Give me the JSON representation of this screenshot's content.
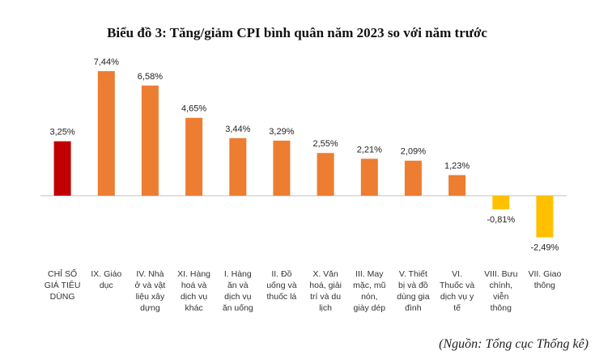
{
  "chart_data": {
    "type": "bar",
    "title": "Biểu đồ 3: Tăng/giảm CPI bình quân năm 2023 so với năm trước",
    "source": "(Nguồn: Tổng cục Thống kê)",
    "categories": [
      [
        "CHỈ SỐ",
        "GIÁ TIÊU",
        "DÙNG"
      ],
      [
        "IX. Giáo",
        "dục"
      ],
      [
        "IV. Nhà",
        "ở và vật",
        "liệu xây",
        "dựng"
      ],
      [
        "XI. Hàng",
        "hoá và",
        "dịch vụ",
        "khác"
      ],
      [
        "I. Hàng",
        "ăn và",
        "dịch vụ",
        "ăn uống"
      ],
      [
        "II. Đồ",
        "uống và",
        "thuốc lá"
      ],
      [
        "X. Văn",
        "hoá, giải",
        "trí và du",
        "lịch"
      ],
      [
        "III. May",
        "mặc, mũ",
        "nón,",
        "giày dép"
      ],
      [
        "V. Thiết",
        "bị và đồ",
        "dùng gia",
        "đình"
      ],
      [
        "VI.",
        "Thuốc và",
        "dịch vụ y",
        "tế"
      ],
      [
        "VIII. Bưu",
        "chính,",
        "viễn",
        "thông"
      ],
      [
        "VII. Giao",
        "thông"
      ]
    ],
    "values": [
      3.25,
      7.44,
      6.58,
      4.65,
      3.44,
      3.29,
      2.55,
      2.21,
      2.09,
      1.23,
      -0.81,
      -2.49
    ],
    "labels": [
      "3,25%",
      "7,44%",
      "6,58%",
      "4,65%",
      "3,44%",
      "3,29%",
      "2,55%",
      "2,21%",
      "2,09%",
      "1,23%",
      "-0,81%",
      "-2,49%"
    ],
    "colors": [
      "#c00000",
      "#ed7d31",
      "#ed7d31",
      "#ed7d31",
      "#ed7d31",
      "#ed7d31",
      "#ed7d31",
      "#ed7d31",
      "#ed7d31",
      "#ed7d31",
      "#ffc000",
      "#ffc000"
    ],
    "axis_color": "#bfbfbf",
    "grid": false,
    "legend": "none"
  }
}
